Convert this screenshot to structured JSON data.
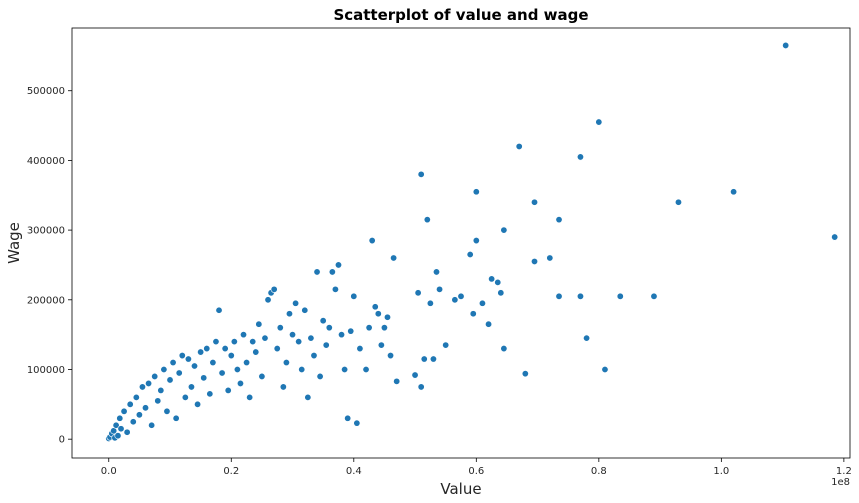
{
  "chart_data": {
    "type": "scatter",
    "title": "Scatterplot of value and wage",
    "xlabel": "Value",
    "ylabel": "Wage",
    "x_offset_label": "1e8",
    "x_scale": 100000000,
    "xlim": [
      -0.06,
      1.21
    ],
    "ylim": [
      -27000,
      590000
    ],
    "xticks": [
      0.0,
      0.2,
      0.4,
      0.6,
      0.8,
      1.0,
      1.2
    ],
    "xtick_labels": [
      "0.0",
      "0.2",
      "0.4",
      "0.6",
      "0.8",
      "1.0",
      "1.2"
    ],
    "yticks": [
      0,
      100000,
      200000,
      300000,
      400000,
      500000
    ],
    "ytick_labels": [
      "0",
      "100000",
      "200000",
      "300000",
      "400000",
      "500000"
    ],
    "grid": false,
    "legend": "none",
    "color": "#1f77b4",
    "points": [
      {
        "x": 0.0,
        "y": 1000
      },
      {
        "x": 0.002,
        "y": 3000
      },
      {
        "x": 0.005,
        "y": 8000
      },
      {
        "x": 0.008,
        "y": 12000
      },
      {
        "x": 0.01,
        "y": 2000
      },
      {
        "x": 0.012,
        "y": 20000
      },
      {
        "x": 0.015,
        "y": 5000
      },
      {
        "x": 0.018,
        "y": 30000
      },
      {
        "x": 0.02,
        "y": 15000
      },
      {
        "x": 0.025,
        "y": 40000
      },
      {
        "x": 0.03,
        "y": 10000
      },
      {
        "x": 0.035,
        "y": 50000
      },
      {
        "x": 0.04,
        "y": 25000
      },
      {
        "x": 0.045,
        "y": 60000
      },
      {
        "x": 0.05,
        "y": 35000
      },
      {
        "x": 0.055,
        "y": 75000
      },
      {
        "x": 0.06,
        "y": 45000
      },
      {
        "x": 0.065,
        "y": 80000
      },
      {
        "x": 0.07,
        "y": 20000
      },
      {
        "x": 0.075,
        "y": 90000
      },
      {
        "x": 0.08,
        "y": 55000
      },
      {
        "x": 0.085,
        "y": 70000
      },
      {
        "x": 0.09,
        "y": 100000
      },
      {
        "x": 0.095,
        "y": 40000
      },
      {
        "x": 0.1,
        "y": 85000
      },
      {
        "x": 0.105,
        "y": 110000
      },
      {
        "x": 0.11,
        "y": 30000
      },
      {
        "x": 0.115,
        "y": 95000
      },
      {
        "x": 0.12,
        "y": 120000
      },
      {
        "x": 0.125,
        "y": 60000
      },
      {
        "x": 0.13,
        "y": 115000
      },
      {
        "x": 0.135,
        "y": 75000
      },
      {
        "x": 0.14,
        "y": 105000
      },
      {
        "x": 0.145,
        "y": 50000
      },
      {
        "x": 0.15,
        "y": 125000
      },
      {
        "x": 0.155,
        "y": 88000
      },
      {
        "x": 0.16,
        "y": 130000
      },
      {
        "x": 0.165,
        "y": 65000
      },
      {
        "x": 0.17,
        "y": 110000
      },
      {
        "x": 0.175,
        "y": 140000
      },
      {
        "x": 0.18,
        "y": 185000
      },
      {
        "x": 0.185,
        "y": 95000
      },
      {
        "x": 0.19,
        "y": 130000
      },
      {
        "x": 0.195,
        "y": 70000
      },
      {
        "x": 0.2,
        "y": 120000
      },
      {
        "x": 0.205,
        "y": 140000
      },
      {
        "x": 0.21,
        "y": 100000
      },
      {
        "x": 0.215,
        "y": 80000
      },
      {
        "x": 0.22,
        "y": 150000
      },
      {
        "x": 0.225,
        "y": 110000
      },
      {
        "x": 0.23,
        "y": 60000
      },
      {
        "x": 0.235,
        "y": 140000
      },
      {
        "x": 0.24,
        "y": 125000
      },
      {
        "x": 0.245,
        "y": 165000
      },
      {
        "x": 0.25,
        "y": 90000
      },
      {
        "x": 0.255,
        "y": 145000
      },
      {
        "x": 0.26,
        "y": 200000
      },
      {
        "x": 0.265,
        "y": 210000
      },
      {
        "x": 0.27,
        "y": 215000
      },
      {
        "x": 0.275,
        "y": 130000
      },
      {
        "x": 0.28,
        "y": 160000
      },
      {
        "x": 0.285,
        "y": 75000
      },
      {
        "x": 0.29,
        "y": 110000
      },
      {
        "x": 0.295,
        "y": 180000
      },
      {
        "x": 0.3,
        "y": 150000
      },
      {
        "x": 0.305,
        "y": 195000
      },
      {
        "x": 0.31,
        "y": 140000
      },
      {
        "x": 0.315,
        "y": 100000
      },
      {
        "x": 0.32,
        "y": 185000
      },
      {
        "x": 0.325,
        "y": 60000
      },
      {
        "x": 0.33,
        "y": 145000
      },
      {
        "x": 0.335,
        "y": 120000
      },
      {
        "x": 0.34,
        "y": 240000
      },
      {
        "x": 0.345,
        "y": 90000
      },
      {
        "x": 0.35,
        "y": 170000
      },
      {
        "x": 0.355,
        "y": 135000
      },
      {
        "x": 0.36,
        "y": 160000
      },
      {
        "x": 0.365,
        "y": 240000
      },
      {
        "x": 0.37,
        "y": 215000
      },
      {
        "x": 0.375,
        "y": 250000
      },
      {
        "x": 0.38,
        "y": 150000
      },
      {
        "x": 0.385,
        "y": 100000
      },
      {
        "x": 0.39,
        "y": 30000
      },
      {
        "x": 0.395,
        "y": 155000
      },
      {
        "x": 0.4,
        "y": 205000
      },
      {
        "x": 0.405,
        "y": 23000
      },
      {
        "x": 0.41,
        "y": 130000
      },
      {
        "x": 0.42,
        "y": 100000
      },
      {
        "x": 0.425,
        "y": 160000
      },
      {
        "x": 0.43,
        "y": 285000
      },
      {
        "x": 0.435,
        "y": 190000
      },
      {
        "x": 0.44,
        "y": 180000
      },
      {
        "x": 0.445,
        "y": 135000
      },
      {
        "x": 0.45,
        "y": 160000
      },
      {
        "x": 0.455,
        "y": 175000
      },
      {
        "x": 0.46,
        "y": 120000
      },
      {
        "x": 0.465,
        "y": 260000
      },
      {
        "x": 0.47,
        "y": 83000
      },
      {
        "x": 0.5,
        "y": 92000
      },
      {
        "x": 0.505,
        "y": 210000
      },
      {
        "x": 0.51,
        "y": 380000
      },
      {
        "x": 0.51,
        "y": 75000
      },
      {
        "x": 0.515,
        "y": 115000
      },
      {
        "x": 0.52,
        "y": 315000
      },
      {
        "x": 0.525,
        "y": 195000
      },
      {
        "x": 0.53,
        "y": 115000
      },
      {
        "x": 0.535,
        "y": 240000
      },
      {
        "x": 0.54,
        "y": 215000
      },
      {
        "x": 0.55,
        "y": 135000
      },
      {
        "x": 0.565,
        "y": 200000
      },
      {
        "x": 0.575,
        "y": 205000
      },
      {
        "x": 0.59,
        "y": 265000
      },
      {
        "x": 0.595,
        "y": 180000
      },
      {
        "x": 0.6,
        "y": 355000
      },
      {
        "x": 0.6,
        "y": 285000
      },
      {
        "x": 0.61,
        "y": 195000
      },
      {
        "x": 0.62,
        "y": 165000
      },
      {
        "x": 0.625,
        "y": 230000
      },
      {
        "x": 0.635,
        "y": 225000
      },
      {
        "x": 0.64,
        "y": 210000
      },
      {
        "x": 0.645,
        "y": 300000
      },
      {
        "x": 0.645,
        "y": 130000
      },
      {
        "x": 0.67,
        "y": 420000
      },
      {
        "x": 0.68,
        "y": 94000
      },
      {
        "x": 0.695,
        "y": 340000
      },
      {
        "x": 0.695,
        "y": 255000
      },
      {
        "x": 0.72,
        "y": 260000
      },
      {
        "x": 0.735,
        "y": 315000
      },
      {
        "x": 0.735,
        "y": 205000
      },
      {
        "x": 0.77,
        "y": 405000
      },
      {
        "x": 0.77,
        "y": 205000
      },
      {
        "x": 0.78,
        "y": 145000
      },
      {
        "x": 0.8,
        "y": 455000
      },
      {
        "x": 0.81,
        "y": 100000
      },
      {
        "x": 0.835,
        "y": 205000
      },
      {
        "x": 0.89,
        "y": 205000
      },
      {
        "x": 0.93,
        "y": 340000
      },
      {
        "x": 1.02,
        "y": 355000
      },
      {
        "x": 1.105,
        "y": 565000
      },
      {
        "x": 1.185,
        "y": 290000
      }
    ]
  }
}
